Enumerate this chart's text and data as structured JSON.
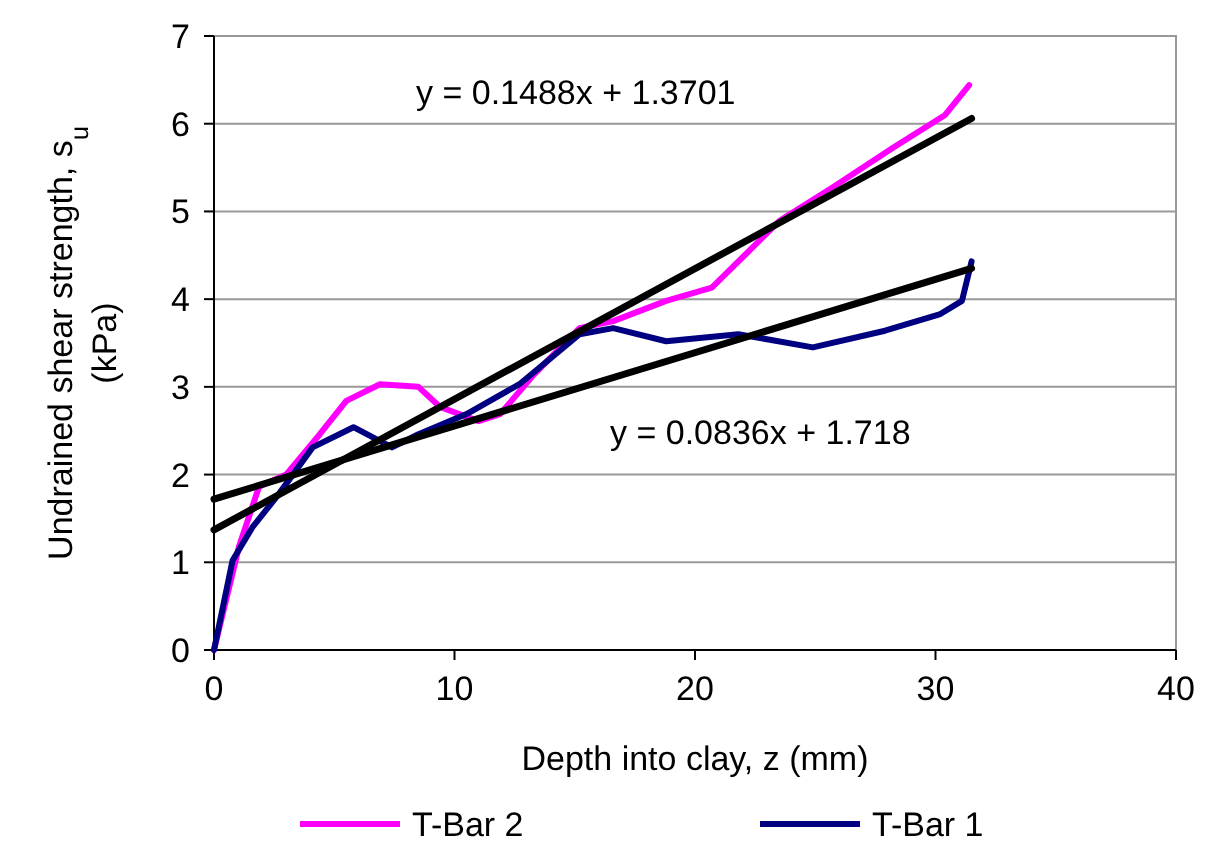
{
  "chart_data": {
    "type": "line",
    "xlabel": "Depth into clay, z (mm)",
    "ylabel": "Undrained shear strength, s$_{u}$ (kPa)",
    "xlim": [
      0,
      40
    ],
    "xticks": [
      0,
      10,
      20,
      30,
      40
    ],
    "ylim": [
      0,
      7
    ],
    "yticks": [
      0,
      1,
      2,
      3,
      4,
      5,
      6,
      7
    ],
    "grid": "y",
    "legend": "bottom",
    "marker": "none",
    "line_style": "solid",
    "annotations": [
      "y = 0.1488x + 1.3701",
      "y = 0.0836x + 1.718"
    ],
    "series": [
      {
        "name": "T-Bar 2",
        "color": "#ff00ff",
        "x": [
          0,
          1.04,
          1.87,
          3.0,
          4.4,
          5.5,
          6.9,
          8.5,
          9.4,
          11.0,
          11.9,
          13.3,
          15.2,
          16.6,
          18.8,
          20.7,
          23.5,
          25.7,
          28.2,
          30.4,
          31.4
        ],
        "values": [
          0,
          1.18,
          1.86,
          2.0,
          2.46,
          2.84,
          3.03,
          3.0,
          2.77,
          2.61,
          2.69,
          3.14,
          3.67,
          3.75,
          3.98,
          4.13,
          4.89,
          5.27,
          5.72,
          6.1,
          6.44
        ]
      },
      {
        "name": "T-Bar 1",
        "color": "#000080",
        "x": [
          0,
          0.77,
          1.6,
          2.7,
          4.1,
          5.8,
          7.4,
          8.5,
          10.5,
          12.7,
          15.2,
          16.6,
          18.8,
          21.8,
          24.9,
          27.9,
          30.2,
          31.1,
          31.5
        ],
        "values": [
          0,
          1.02,
          1.4,
          1.78,
          2.31,
          2.54,
          2.31,
          2.46,
          2.69,
          3.03,
          3.6,
          3.67,
          3.52,
          3.6,
          3.45,
          3.64,
          3.83,
          3.98,
          4.43
        ]
      },
      {
        "type": "line",
        "color": "#000000",
        "x": [
          0,
          31.5
        ],
        "values": [
          1.37,
          6.06
        ]
      },
      {
        "type": "line",
        "color": "#000000",
        "x": [
          0,
          31.5
        ],
        "values": [
          1.72,
          4.35
        ]
      }
    ]
  }
}
